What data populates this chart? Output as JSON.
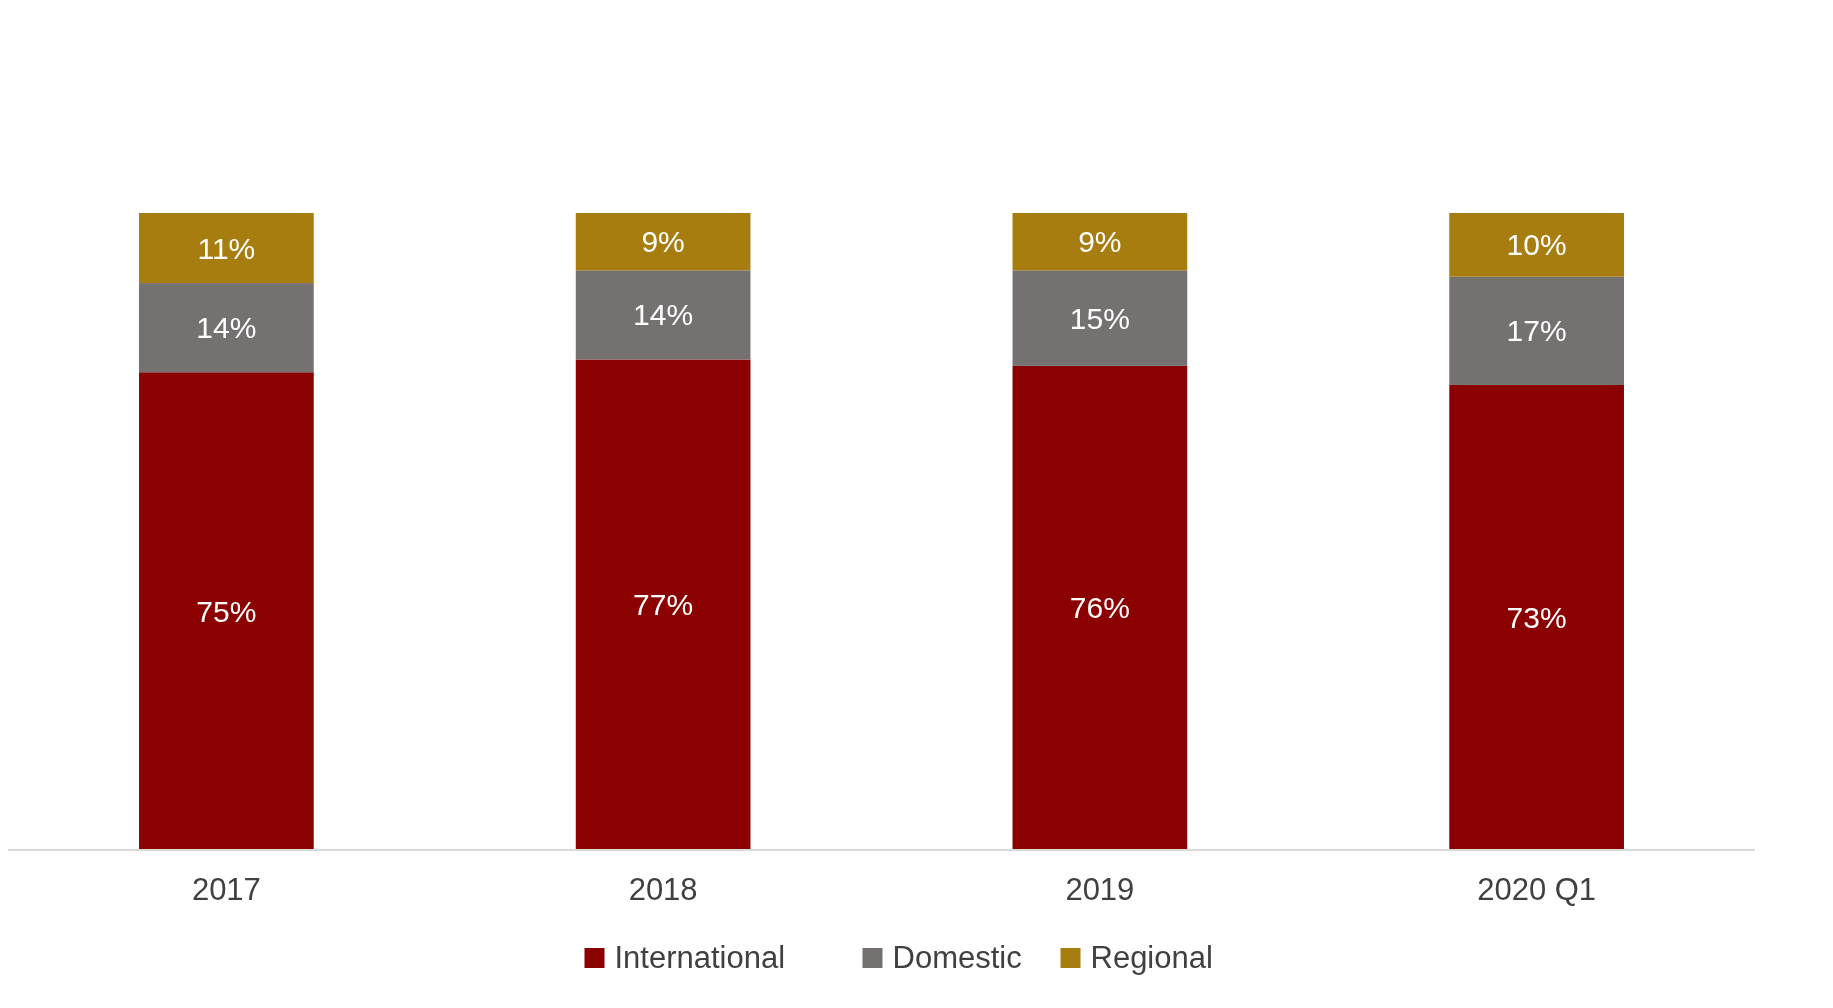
{
  "chart_data": {
    "type": "bar",
    "stacked": true,
    "categories": [
      "2017",
      "2018",
      "2019",
      "2020 Q1"
    ],
    "series": [
      {
        "name": "International",
        "color": "#8b0000",
        "values": [
          75,
          77,
          76,
          73
        ],
        "value_labels": [
          "75%",
          "77%",
          "76%",
          "73%"
        ]
      },
      {
        "name": "Domestic",
        "color": "#767171",
        "values": [
          14,
          14,
          15,
          17
        ],
        "value_labels": [
          "14%",
          "14%",
          "15%",
          "17%"
        ]
      },
      {
        "name": "Regional",
        "color": "#a87d10",
        "values": [
          11,
          9,
          9,
          10
        ],
        "value_labels": [
          "11%",
          "9%",
          "9%",
          "10%"
        ]
      }
    ],
    "legend": "bottom"
  }
}
